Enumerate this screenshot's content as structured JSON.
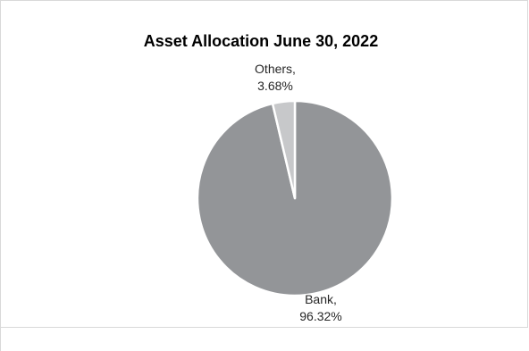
{
  "chart_data": {
    "type": "pie",
    "title": "Asset Allocation June 30, 2022",
    "slices": [
      {
        "name": "Bank",
        "value": 96.32,
        "label_line1": "Bank,",
        "label_line2": "96.32%",
        "color": "#939598"
      },
      {
        "name": "Others",
        "value": 3.68,
        "label_line1": "Others,",
        "label_line2": "3.68%",
        "color": "#c7c8ca"
      }
    ],
    "slice_border_color": "#ffffff",
    "legend": "none"
  }
}
